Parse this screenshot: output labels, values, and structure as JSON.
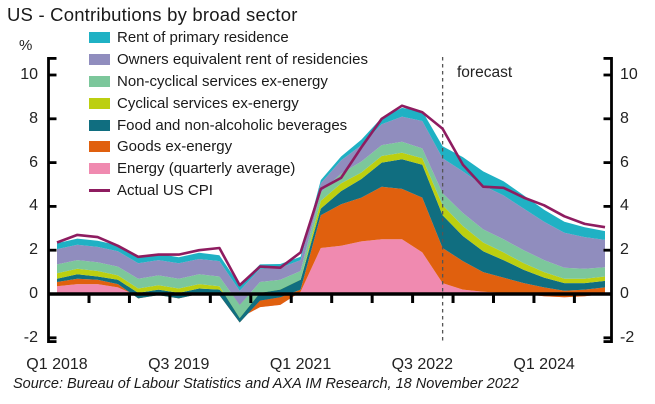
{
  "title": "US - Contributions by broad sector",
  "y_axis_unit_label": "%",
  "forecast_label": "forecast",
  "source": "Source: Bureau of Labour Statistics and AXA IM Research, 18 November 2022",
  "colors": {
    "background": "#ffffff",
    "axis": "#000000",
    "dashed_forecast_line": "#555555",
    "text": "#1a1a1a"
  },
  "chart_data": {
    "type": "area",
    "subtype": "stacked-area-with-line",
    "title": "US - Contributions by broad sector",
    "ylabel": "%",
    "ylim": [
      -2,
      10
    ],
    "yticks": [
      "10",
      "8",
      "6",
      "4",
      "2",
      "0",
      "-2"
    ],
    "ytick_values": [
      10,
      8,
      6,
      4,
      2,
      0,
      -2
    ],
    "y_axis_sides": "both",
    "grid": "off",
    "legend_position": "inside-top-left",
    "x": [
      "Q1 2018",
      "Q2 2018",
      "Q3 2018",
      "Q4 2018",
      "Q1 2019",
      "Q2 2019",
      "Q3 2019",
      "Q4 2019",
      "Q1 2020",
      "Q2 2020",
      "Q3 2020",
      "Q4 2020",
      "Q1 2021",
      "Q2 2021",
      "Q3 2021",
      "Q4 2021",
      "Q1 2022",
      "Q2 2022",
      "Q3 2022",
      "Q4 2022",
      "Q1 2023",
      "Q2 2023",
      "Q3 2023",
      "Q4 2023",
      "Q1 2024",
      "Q2 2024",
      "Q3 2024",
      "Q4 2024"
    ],
    "x_tick_labels": [
      {
        "label": "Q1 2018",
        "index": 0
      },
      {
        "label": "Q3 2019",
        "index": 6
      },
      {
        "label": "Q1 2021",
        "index": 12
      },
      {
        "label": "Q3 2022",
        "index": 18
      },
      {
        "label": "Q1 2024",
        "index": 24
      }
    ],
    "forecast": {
      "label": "forecast",
      "start_index": 19
    },
    "series": [
      {
        "id": "energy",
        "name": "Energy (quarterly average)",
        "color": "#f08ab0",
        "values": [
          0.35,
          0.45,
          0.45,
          0.3,
          -0.1,
          0.1,
          -0.05,
          0.1,
          0.05,
          -1.1,
          -0.6,
          -0.5,
          0.1,
          2.1,
          2.2,
          2.4,
          2.5,
          2.5,
          1.9,
          0.5,
          0.2,
          0.1,
          0.05,
          0.0,
          -0.1,
          -0.15,
          -0.1,
          0.0
        ]
      },
      {
        "id": "goods",
        "name": "Goods ex-energy",
        "color": "#e0600e",
        "values": [
          0.2,
          0.25,
          0.2,
          0.15,
          -0.1,
          -0.15,
          -0.15,
          -0.1,
          -0.1,
          -0.2,
          0.3,
          0.35,
          0.1,
          1.5,
          1.9,
          2.0,
          2.4,
          2.3,
          2.5,
          1.6,
          1.3,
          0.9,
          0.7,
          0.5,
          0.4,
          0.3,
          0.3,
          0.3
        ]
      },
      {
        "id": "food",
        "name": "Food and non-alcoholic beverages",
        "color": "#106e80",
        "values": [
          0.15,
          0.2,
          0.15,
          0.2,
          0.25,
          0.25,
          0.25,
          0.25,
          0.25,
          0.7,
          0.55,
          0.5,
          0.45,
          0.3,
          0.6,
          0.85,
          1.1,
          1.35,
          1.5,
          1.5,
          1.15,
          0.95,
          0.8,
          0.6,
          0.45,
          0.35,
          0.3,
          0.3
        ]
      },
      {
        "id": "cyclical-services",
        "name": "Cyclical services ex-energy",
        "color": "#bccf10",
        "values": [
          0.25,
          0.25,
          0.25,
          0.2,
          0.2,
          0.2,
          0.2,
          0.2,
          0.15,
          -0.5,
          -0.2,
          -0.15,
          0.0,
          0.35,
          0.35,
          0.3,
          0.3,
          0.3,
          0.3,
          0.45,
          0.45,
          0.4,
          0.35,
          0.3,
          0.25,
          0.2,
          0.2,
          0.2
        ]
      },
      {
        "id": "noncyclical-services",
        "name": "Non-cyclical services ex-energy",
        "color": "#7cc79b",
        "values": [
          0.4,
          0.4,
          0.4,
          0.4,
          0.45,
          0.45,
          0.45,
          0.45,
          0.45,
          0.6,
          0.5,
          0.45,
          0.4,
          0.4,
          0.45,
          0.5,
          0.5,
          0.5,
          0.45,
          0.55,
          0.6,
          0.6,
          0.6,
          0.6,
          0.55,
          0.5,
          0.45,
          0.42
        ]
      },
      {
        "id": "owners-equivalent-rent",
        "name": "Owners equivalent rent of residencies",
        "color": "#908dbe",
        "values": [
          0.7,
          0.7,
          0.7,
          0.7,
          0.7,
          0.7,
          0.7,
          0.7,
          0.7,
          0.65,
          0.6,
          0.55,
          0.5,
          0.4,
          0.6,
          0.75,
          0.95,
          1.15,
          1.25,
          1.6,
          1.9,
          2.0,
          2.0,
          1.9,
          1.75,
          1.6,
          1.45,
          1.25
        ]
      },
      {
        "id": "rent",
        "name": "Rent of primary residence",
        "color": "#1fb1c4",
        "values": [
          0.27,
          0.28,
          0.28,
          0.28,
          0.28,
          0.28,
          0.28,
          0.28,
          0.27,
          0.25,
          0.2,
          0.17,
          0.15,
          0.15,
          0.18,
          0.25,
          0.3,
          0.4,
          0.45,
          0.55,
          0.65,
          0.65,
          0.65,
          0.6,
          0.55,
          0.5,
          0.45,
          0.4
        ]
      }
    ],
    "line": {
      "id": "actual-us-cpi",
      "name": "Actual US CPI",
      "color": "#8e1c60",
      "values": [
        2.35,
        2.7,
        2.6,
        2.2,
        1.7,
        1.8,
        1.8,
        2.0,
        2.1,
        0.4,
        1.25,
        1.2,
        1.9,
        4.8,
        5.3,
        6.7,
        8.0,
        8.6,
        8.3,
        7.55,
        5.9,
        4.9,
        4.85,
        4.4,
        4.05,
        3.55,
        3.2,
        3.05
      ]
    }
  }
}
